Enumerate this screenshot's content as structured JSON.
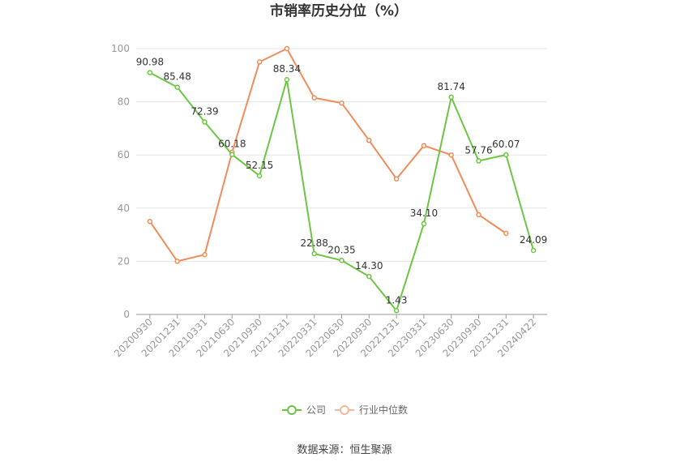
{
  "chart_data": {
    "type": "line",
    "title": "市销率历史分位（%）",
    "categories": [
      "20200930",
      "20201231",
      "20210331",
      "20210630",
      "20210930",
      "20211231",
      "20220331",
      "20220630",
      "20220930",
      "20221231",
      "20230331",
      "20230630",
      "20230930",
      "20231231",
      "20240422"
    ],
    "series": [
      {
        "name": "公司",
        "color": "#6cc644",
        "values": [
          90.98,
          85.48,
          72.39,
          60.18,
          52.15,
          88.34,
          22.88,
          20.35,
          14.3,
          1.43,
          34.1,
          81.74,
          57.76,
          60.07,
          24.09
        ],
        "labels": [
          "90.98",
          "85.48",
          "72.39",
          "60.18",
          "52.15",
          "88.34",
          "22.88",
          "20.35",
          "14.30",
          "1.43",
          "34.10",
          "81.74",
          "57.76",
          "60.07",
          "24.09"
        ]
      },
      {
        "name": "行业中位数",
        "color": "#f08c5a",
        "values": [
          35.0,
          20.0,
          22.5,
          61.0,
          95.0,
          100.0,
          81.5,
          79.5,
          65.5,
          51.0,
          63.5,
          60.0,
          37.5,
          30.5,
          null
        ]
      }
    ],
    "yticks": [
      "0",
      "20",
      "40",
      "60",
      "80",
      "100"
    ],
    "ylim": [
      0,
      100
    ],
    "grid": true,
    "legend_position": "bottom-center"
  },
  "source": "数据来源：恒生聚源"
}
